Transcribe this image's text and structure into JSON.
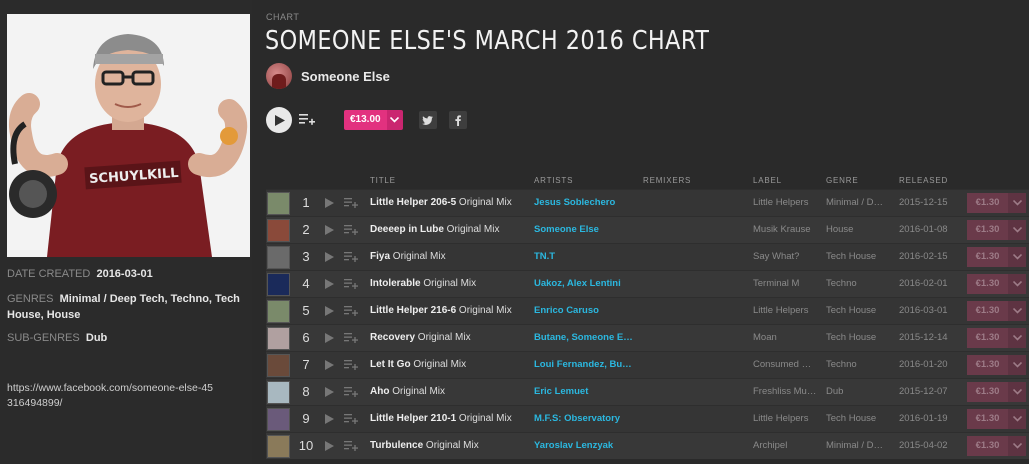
{
  "sidebar": {
    "date_created_label": "DATE CREATED",
    "date_created": "2016-03-01",
    "genres_label": "GENRES",
    "genres": "Minimal / Deep Tech, Techno, Tech House, House",
    "subgenres_label": "SUB-GENRES",
    "subgenres": "Dub",
    "link": "https://www.facebook.com/someone-else-45316494899/"
  },
  "header": {
    "kicker": "CHART",
    "title": "SOMEONE ELSE'S MARCH 2016 CHART",
    "curator": "Someone Else"
  },
  "actions": {
    "price": "€13.00",
    "twitter": "twitter-icon",
    "facebook": "facebook-icon"
  },
  "columns": {
    "title": "TITLE",
    "artists": "ARTISTS",
    "remixers": "REMIXERS",
    "label": "LABEL",
    "genre": "GENRE",
    "released": "RELEASED"
  },
  "tracks": [
    {
      "num": "1",
      "name": "Little Helper 206-5",
      "mix": "Original Mix",
      "artists": "Jesus Soblechero",
      "label": "Little Helpers",
      "genre": "Minimal / D…",
      "released": "2015-12-15",
      "price": "€1.30",
      "thumb": "#7a8a6a"
    },
    {
      "num": "2",
      "name": "Deeeep in Lube",
      "mix": "Original Mix",
      "artists": "Someone Else",
      "label": "Musik Krause",
      "genre": "House",
      "released": "2016-01-08",
      "price": "€1.30",
      "thumb": "#8a4a3a"
    },
    {
      "num": "3",
      "name": "Fiya",
      "mix": "Original Mix",
      "artists": "TN.T",
      "label": "Say What?",
      "genre": "Tech House",
      "released": "2016-02-15",
      "price": "€1.30",
      "thumb": "#6a6a6a"
    },
    {
      "num": "4",
      "name": "Intolerable",
      "mix": "Original Mix",
      "artists": "Uakoz, Alex Lentini",
      "label": "Terminal M",
      "genre": "Techno",
      "released": "2016-02-01",
      "price": "€1.30",
      "thumb": "#1a2a5a"
    },
    {
      "num": "5",
      "name": "Little Helper 216-6",
      "mix": "Original Mix",
      "artists": "Enrico Caruso",
      "label": "Little Helpers",
      "genre": "Tech House",
      "released": "2016-03-01",
      "price": "€1.30",
      "thumb": "#7a8a6a"
    },
    {
      "num": "6",
      "name": "Recovery",
      "mix": "Original Mix",
      "artists": "Butane, Someone E…",
      "label": "Moan",
      "genre": "Tech House",
      "released": "2015-12-14",
      "price": "€1.30",
      "thumb": "#b0a0a0"
    },
    {
      "num": "7",
      "name": "Let It Go",
      "mix": "Original Mix",
      "artists": "Loui Fernandez, Bu…",
      "label": "Consumed …",
      "genre": "Techno",
      "released": "2016-01-20",
      "price": "€1.30",
      "thumb": "#6a4a3a"
    },
    {
      "num": "8",
      "name": "Aho",
      "mix": "Original Mix",
      "artists": "Eric Lemuet",
      "label": "Freshliss Mu…",
      "genre": "Dub",
      "released": "2015-12-07",
      "price": "€1.30",
      "thumb": "#a8b8c0"
    },
    {
      "num": "9",
      "name": "Little Helper 210-1",
      "mix": "Original Mix",
      "artists": "M.F.S: Observatory",
      "label": "Little Helpers",
      "genre": "Tech House",
      "released": "2016-01-19",
      "price": "€1.30",
      "thumb": "#6a5a7a"
    },
    {
      "num": "10",
      "name": "Turbulence",
      "mix": "Original Mix",
      "artists": "Yaroslav Lenzyak",
      "label": "Archipel",
      "genre": "Minimal / D…",
      "released": "2015-04-02",
      "price": "€1.30",
      "thumb": "#8a7a5a"
    }
  ]
}
